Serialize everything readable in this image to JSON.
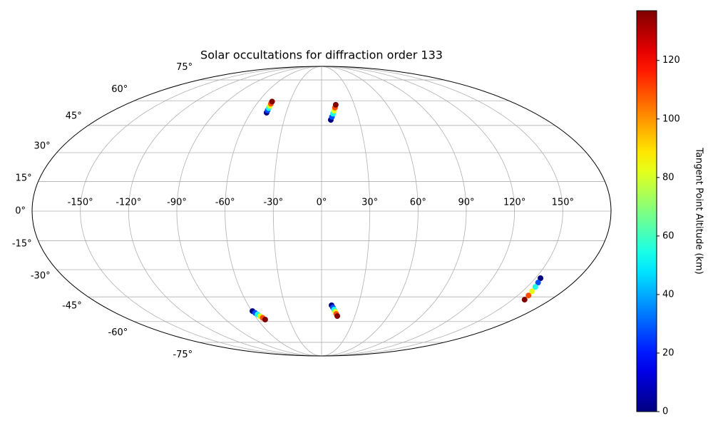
{
  "chart_data": {
    "type": "scatter",
    "projection": "mollweide",
    "title": "Solar occultations for diffraction order 133",
    "x": [
      -46.6,
      -46.7,
      -46.8,
      -46.9,
      -47.0,
      -47.1,
      7.4,
      8.5,
      9.6,
      10.8,
      11.9,
      13.0,
      -59.4,
      -58.1,
      -56.8,
      -55.5,
      -54.2,
      -52.9,
      8.2,
      9.4,
      10.6,
      11.8,
      13.0,
      14.2,
      153.6,
      154.8,
      156.0,
      157.1,
      158.3,
      159.5
    ],
    "y": [
      52.5,
      53.9,
      55.3,
      56.7,
      58.1,
      59.5,
      48.2,
      50.0,
      51.9,
      53.7,
      55.6,
      57.4,
      -53.4,
      -54.5,
      -55.5,
      -56.6,
      -57.6,
      -58.7,
      -49.9,
      -51.2,
      -52.5,
      -53.9,
      -55.2,
      -56.5,
      -34.6,
      -37.0,
      -39.4,
      -41.8,
      -44.2,
      -46.6
    ],
    "c": [
      0,
      27.4,
      54.8,
      82.2,
      109.6,
      137,
      0,
      27.4,
      54.8,
      82.2,
      109.6,
      137,
      0,
      27.4,
      54.8,
      82.2,
      109.6,
      137,
      0,
      27.4,
      54.8,
      82.2,
      109.6,
      137,
      0,
      27.4,
      54.8,
      82.2,
      109.6,
      137
    ],
    "colormap": "jet",
    "xlim": [
      -180,
      180
    ],
    "ylim": [
      -90,
      90
    ],
    "xticks": [
      {
        "value": -150,
        "label": "-150°"
      },
      {
        "value": -120,
        "label": "-120°"
      },
      {
        "value": -90,
        "label": "-90°"
      },
      {
        "value": -60,
        "label": "-60°"
      },
      {
        "value": -30,
        "label": "-30°"
      },
      {
        "value": 0,
        "label": "0°"
      },
      {
        "value": 30,
        "label": "30°"
      },
      {
        "value": 60,
        "label": "60°"
      },
      {
        "value": 90,
        "label": "90°"
      },
      {
        "value": 120,
        "label": "120°"
      },
      {
        "value": 150,
        "label": "150°"
      }
    ],
    "yticks": [
      {
        "value": -75,
        "label": "-75°"
      },
      {
        "value": -60,
        "label": "-60°"
      },
      {
        "value": -45,
        "label": "-45°"
      },
      {
        "value": -30,
        "label": "-30°"
      },
      {
        "value": -15,
        "label": "-15°"
      },
      {
        "value": 0,
        "label": "0°"
      },
      {
        "value": 15,
        "label": "15°"
      },
      {
        "value": 30,
        "label": "30°"
      },
      {
        "value": 45,
        "label": "45°"
      },
      {
        "value": 60,
        "label": "60°"
      },
      {
        "value": 75,
        "label": "75°"
      }
    ],
    "grid": true,
    "colorbar": {
      "label": "Tangent Point Altitude (km)",
      "clim": [
        0,
        137
      ],
      "ticks": [
        0,
        20,
        40,
        60,
        80,
        100,
        120
      ]
    }
  }
}
